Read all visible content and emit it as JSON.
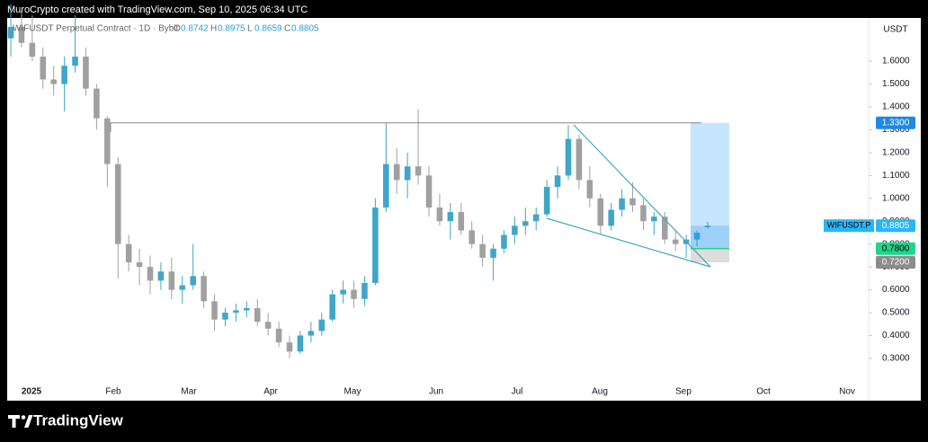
{
  "header": {
    "credit": "MuroCrypto created with TradingView.com, Sep 10, 2025 06:34 UTC",
    "symbol": "WIFUSDT Perpetual Contract · 1D · Bybit",
    "ohlc": [
      {
        "label": "O",
        "value": "0.8742"
      },
      {
        "label": "H",
        "value": "0.8975"
      },
      {
        "label": "L",
        "value": "0.8659"
      },
      {
        "label": "C",
        "value": "0.8805"
      }
    ],
    "currency": "USDT"
  },
  "footer": {
    "brand": "TradingView"
  },
  "chart_data": {
    "type": "candlestick",
    "categories": [
      "2025",
      "Feb",
      "Mar",
      "Apr",
      "May",
      "Jun",
      "Jul",
      "Aug",
      "Sep",
      "Oct",
      "Nov"
    ],
    "ylim": [
      0.119,
      1.789
    ],
    "yticks": [
      {
        "value": 0.3,
        "label": "0.3000"
      },
      {
        "value": 0.4,
        "label": "0.4000"
      },
      {
        "value": 0.5,
        "label": "0.5000"
      },
      {
        "value": 0.6,
        "label": "0.6000"
      },
      {
        "value": 0.7,
        "label": "0.7000"
      },
      {
        "value": 0.8,
        "label": "0.8000"
      },
      {
        "value": 0.9,
        "label": "0.9000"
      },
      {
        "value": 1.0,
        "label": "1.0000"
      },
      {
        "value": 1.1,
        "label": "1.1000"
      },
      {
        "value": 1.2,
        "label": "1.2000"
      },
      {
        "value": 1.3,
        "label": "1.3000"
      },
      {
        "value": 1.4,
        "label": "1.4000"
      },
      {
        "value": 1.5,
        "label": "1.5000"
      },
      {
        "value": 1.6,
        "label": "1.6000"
      }
    ],
    "up_color": "#3fa6c8",
    "down_color": "#a0a0a0",
    "open": [
      1.7,
      1.75,
      1.68,
      1.62,
      1.52,
      1.5,
      1.58,
      1.62,
      1.48,
      1.35,
      1.15,
      0.8,
      0.72,
      0.7,
      0.64,
      0.68,
      0.6,
      0.62,
      0.66,
      0.55,
      0.47,
      0.5,
      0.51,
      0.52,
      0.46,
      0.43,
      0.37,
      0.33,
      0.4,
      0.42,
      0.47,
      0.58,
      0.6,
      0.56,
      0.63,
      0.96,
      1.15,
      1.08,
      1.14,
      1.1,
      0.96,
      0.9,
      0.94,
      0.86,
      0.8,
      0.74,
      0.78,
      0.84,
      0.88,
      0.9,
      0.93,
      1.05,
      1.1,
      1.26,
      1.08,
      1.0,
      0.88,
      0.95,
      1.0,
      0.97,
      0.9,
      0.92,
      0.82,
      0.8,
      0.82,
      0.8742
    ],
    "high": [
      1.85,
      1.82,
      1.8,
      1.66,
      1.58,
      1.62,
      1.8,
      1.66,
      1.5,
      1.36,
      1.18,
      0.84,
      0.78,
      0.75,
      0.72,
      0.74,
      0.66,
      0.8,
      0.68,
      0.58,
      0.52,
      0.54,
      0.55,
      0.56,
      0.5,
      0.46,
      0.4,
      0.42,
      0.46,
      0.5,
      0.6,
      0.64,
      0.64,
      0.66,
      1.0,
      1.33,
      1.22,
      1.2,
      1.39,
      1.14,
      1.02,
      0.98,
      0.98,
      0.9,
      0.84,
      0.8,
      0.86,
      0.92,
      0.96,
      0.96,
      1.08,
      1.14,
      1.32,
      1.28,
      1.14,
      1.02,
      0.98,
      1.04,
      1.07,
      1.0,
      0.94,
      0.94,
      0.86,
      0.84,
      0.86,
      0.8975
    ],
    "low": [
      1.62,
      1.66,
      1.6,
      1.48,
      1.45,
      1.38,
      1.55,
      1.45,
      1.3,
      1.05,
      0.65,
      0.68,
      0.62,
      0.58,
      0.6,
      0.56,
      0.54,
      0.6,
      0.52,
      0.42,
      0.44,
      0.46,
      0.48,
      0.44,
      0.4,
      0.35,
      0.3,
      0.32,
      0.37,
      0.4,
      0.46,
      0.54,
      0.52,
      0.53,
      0.62,
      0.94,
      1.02,
      1.0,
      1.06,
      0.92,
      0.88,
      0.82,
      0.84,
      0.78,
      0.7,
      0.64,
      0.76,
      0.8,
      0.84,
      0.86,
      0.92,
      1.0,
      1.08,
      1.04,
      0.96,
      0.84,
      0.86,
      0.92,
      0.94,
      0.86,
      0.84,
      0.8,
      0.77,
      0.74,
      0.79,
      0.8659
    ],
    "close": [
      1.75,
      1.68,
      1.62,
      1.52,
      1.5,
      1.58,
      1.62,
      1.48,
      1.35,
      1.15,
      0.8,
      0.72,
      0.7,
      0.64,
      0.68,
      0.6,
      0.62,
      0.66,
      0.55,
      0.47,
      0.5,
      0.51,
      0.52,
      0.46,
      0.43,
      0.37,
      0.33,
      0.4,
      0.42,
      0.47,
      0.58,
      0.6,
      0.56,
      0.63,
      0.96,
      1.15,
      1.08,
      1.14,
      1.1,
      0.96,
      0.9,
      0.94,
      0.86,
      0.8,
      0.74,
      0.78,
      0.84,
      0.88,
      0.9,
      0.93,
      1.05,
      1.1,
      1.26,
      1.08,
      1.0,
      0.88,
      0.95,
      1.0,
      0.97,
      0.9,
      0.92,
      0.82,
      0.8,
      0.82,
      0.85,
      0.8805
    ],
    "price_labels": [
      {
        "value": 1.33,
        "label": "1.3300",
        "color": "#1e88e5"
      },
      {
        "value": 0.8805,
        "label": "0.8805",
        "name": "WIFUSDT.P",
        "color": "#29b6f6"
      },
      {
        "value": 0.78,
        "label": "0.7800",
        "color": "#1fd68a"
      },
      {
        "value": 0.72,
        "label": "0.7200",
        "color": "#8c8c8c"
      }
    ]
  }
}
